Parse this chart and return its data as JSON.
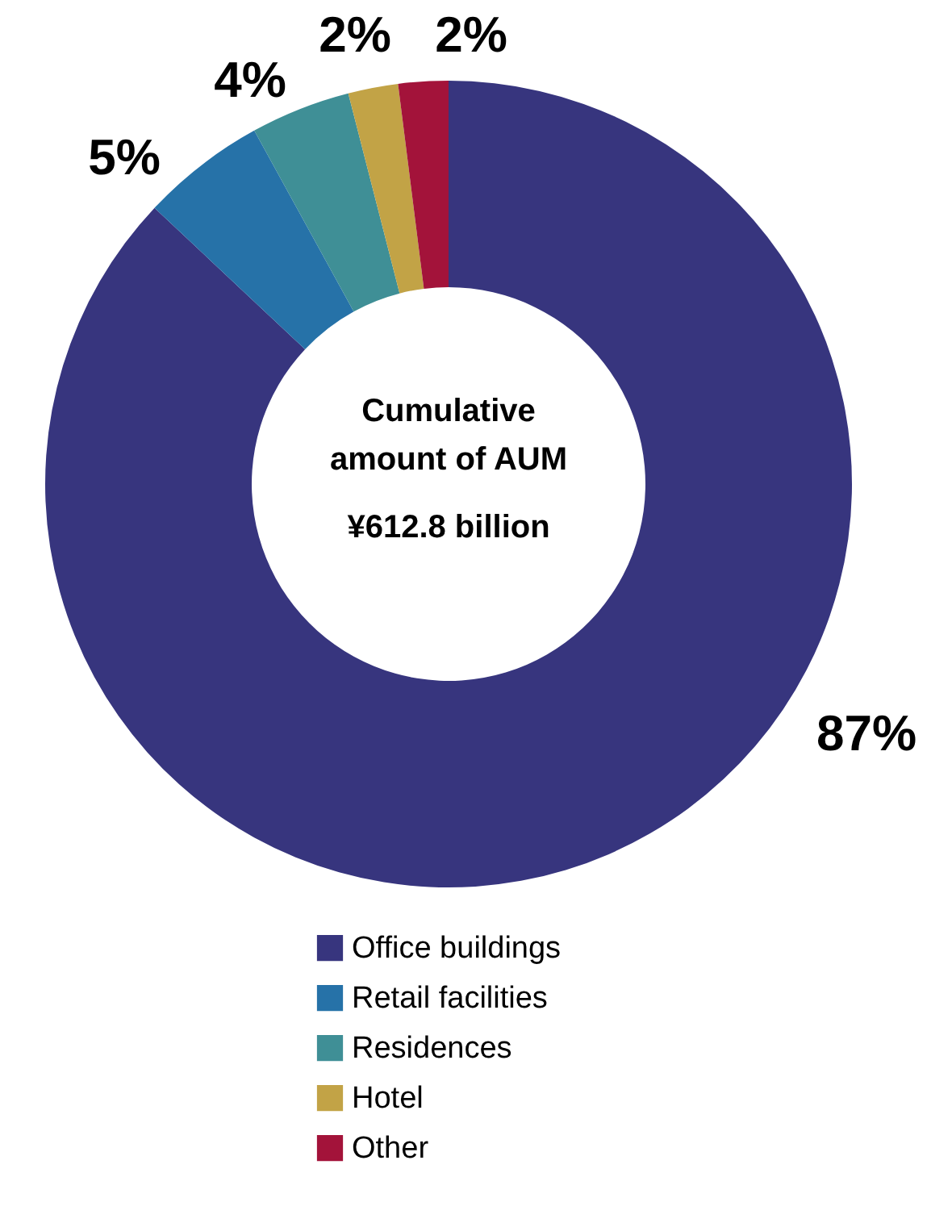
{
  "chart_data": {
    "type": "donut",
    "categories": [
      "Office buildings",
      "Retail facilities",
      "Residences",
      "Hotel",
      "Other"
    ],
    "values": [
      87,
      5,
      4,
      2,
      2
    ],
    "colors": [
      "#37357e",
      "#2672a8",
      "#3f8f96",
      "#c2a346",
      "#a3133a"
    ],
    "value_labels": [
      "87%",
      "5%",
      "4%",
      "2%",
      "2%"
    ],
    "legend": "bottom",
    "annotations": [
      "Cumulative amount of AUM",
      "¥612.8 billion"
    ]
  }
}
